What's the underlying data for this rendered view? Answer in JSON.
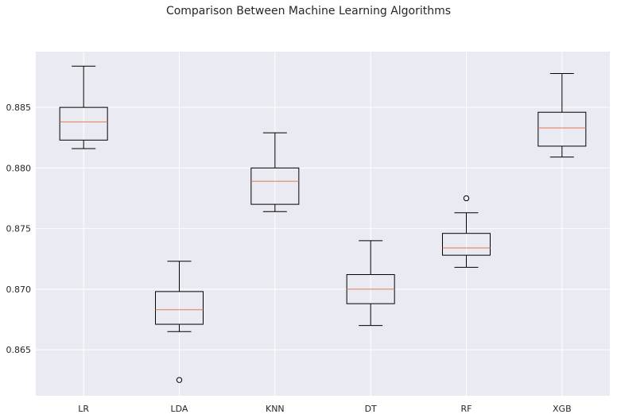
{
  "chart_data": {
    "type": "box",
    "title": "Comparison Between Machine Learning Algorithms",
    "xlabel": "",
    "ylabel": "",
    "categories": [
      "LR",
      "LDA",
      "KNN",
      "DT",
      "RF",
      "XGB"
    ],
    "boxes": [
      {
        "category": "LR",
        "whisker_low": 0.8816,
        "q1": 0.8823,
        "median": 0.8838,
        "q3": 0.885,
        "whisker_high": 0.8884,
        "outliers": []
      },
      {
        "category": "LDA",
        "whisker_low": 0.8665,
        "q1": 0.8671,
        "median": 0.8683,
        "q3": 0.8698,
        "whisker_high": 0.8723,
        "outliers": [
          0.8625
        ]
      },
      {
        "category": "KNN",
        "whisker_low": 0.8764,
        "q1": 0.877,
        "median": 0.8789,
        "q3": 0.88,
        "whisker_high": 0.8829,
        "outliers": []
      },
      {
        "category": "DT",
        "whisker_low": 0.867,
        "q1": 0.8688,
        "median": 0.87,
        "q3": 0.8712,
        "whisker_high": 0.874,
        "outliers": []
      },
      {
        "category": "RF",
        "whisker_low": 0.8718,
        "q1": 0.8728,
        "median": 0.8734,
        "q3": 0.8746,
        "whisker_high": 0.8763,
        "outliers": [
          0.8775
        ]
      },
      {
        "category": "XGB",
        "whisker_low": 0.8809,
        "q1": 0.8818,
        "median": 0.8833,
        "q3": 0.8846,
        "whisker_high": 0.8878,
        "outliers": []
      }
    ],
    "yticks": [
      0.865,
      0.87,
      0.875,
      0.88,
      0.885
    ],
    "ytick_labels": [
      "0.865",
      "0.870",
      "0.875",
      "0.880",
      "0.885"
    ],
    "ylim": [
      0.8612,
      0.8896
    ],
    "grid": true,
    "legend": "none",
    "colors": {
      "background": "#eaeaf2",
      "grid": "#ffffff",
      "box": "#000000",
      "median": "#e1775a",
      "text": "#262626"
    }
  }
}
